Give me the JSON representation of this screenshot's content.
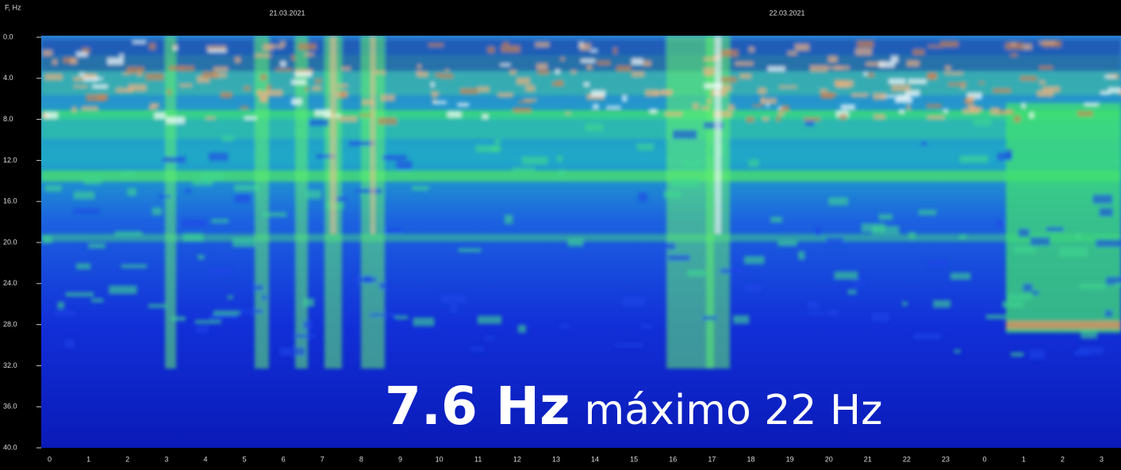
{
  "chart_data": {
    "type": "spectrogram",
    "y_label": "F, Hz",
    "dates": [
      "21.03.2021",
      "22.03.2021"
    ],
    "categories": [
      "0",
      "1",
      "2",
      "3",
      "4",
      "5",
      "6",
      "7",
      "8",
      "9",
      "10",
      "11",
      "12",
      "13",
      "14",
      "15",
      "16",
      "17",
      "18",
      "19",
      "20",
      "21",
      "22",
      "23",
      "0",
      "1",
      "2",
      "3"
    ],
    "ylim": [
      0,
      40
    ],
    "y_inverted": true,
    "yticks": [
      {
        "value": 0,
        "label": "0.0"
      },
      {
        "value": 4,
        "label": "4.0"
      },
      {
        "value": 8,
        "label": "8.0"
      },
      {
        "value": 12,
        "label": "12.0"
      },
      {
        "value": 16,
        "label": "16.0"
      },
      {
        "value": 20,
        "label": "20.0"
      },
      {
        "value": 24,
        "label": "24.0"
      },
      {
        "value": 28,
        "label": "28.0"
      },
      {
        "value": 32,
        "label": "32.0"
      },
      {
        "value": 36,
        "label": "36.0"
      },
      {
        "value": 40,
        "label": "40.0"
      }
    ],
    "annotation": {
      "bold": "7.6 Hz",
      "text": "máximo 22 Hz"
    }
  }
}
